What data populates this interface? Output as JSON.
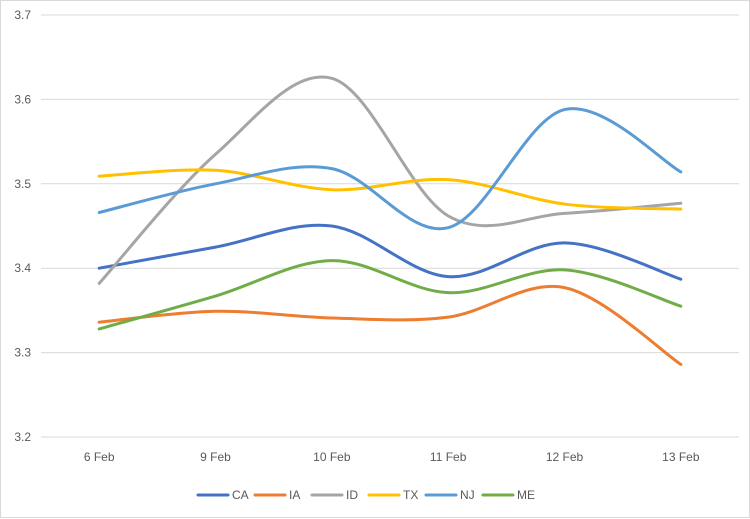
{
  "chart_data": {
    "type": "line",
    "title": "",
    "xlabel": "",
    "ylabel": "",
    "categories": [
      "6 Feb",
      "9 Feb",
      "10 Feb",
      "11 Feb",
      "12 Feb",
      "13 Feb"
    ],
    "ylim": [
      3.2,
      3.7
    ],
    "yticks": [
      "3.2",
      "3.3",
      "3.4",
      "3.5",
      "3.6",
      "3.7"
    ],
    "grid": true,
    "smooth": true,
    "legend_position": "bottom",
    "series": [
      {
        "name": "CA",
        "color": "#4472C4",
        "values": [
          3.4,
          3.425,
          3.45,
          3.39,
          3.43,
          3.387
        ]
      },
      {
        "name": "IA",
        "color": "#ED7D31",
        "values": [
          3.336,
          3.349,
          3.341,
          3.342,
          3.377,
          3.286
        ]
      },
      {
        "name": "ID",
        "color": "#A5A5A5",
        "values": [
          3.382,
          3.535,
          3.625,
          3.462,
          3.465,
          3.477
        ]
      },
      {
        "name": "TX",
        "color": "#FFC000",
        "values": [
          3.509,
          3.516,
          3.493,
          3.505,
          3.476,
          3.47
        ]
      },
      {
        "name": "NJ",
        "color": "#5B9BD5",
        "values": [
          3.466,
          3.5,
          3.518,
          3.448,
          3.588,
          3.514
        ]
      },
      {
        "name": "ME",
        "color": "#70AD47",
        "values": [
          3.328,
          3.367,
          3.409,
          3.371,
          3.398,
          3.355
        ]
      }
    ]
  }
}
